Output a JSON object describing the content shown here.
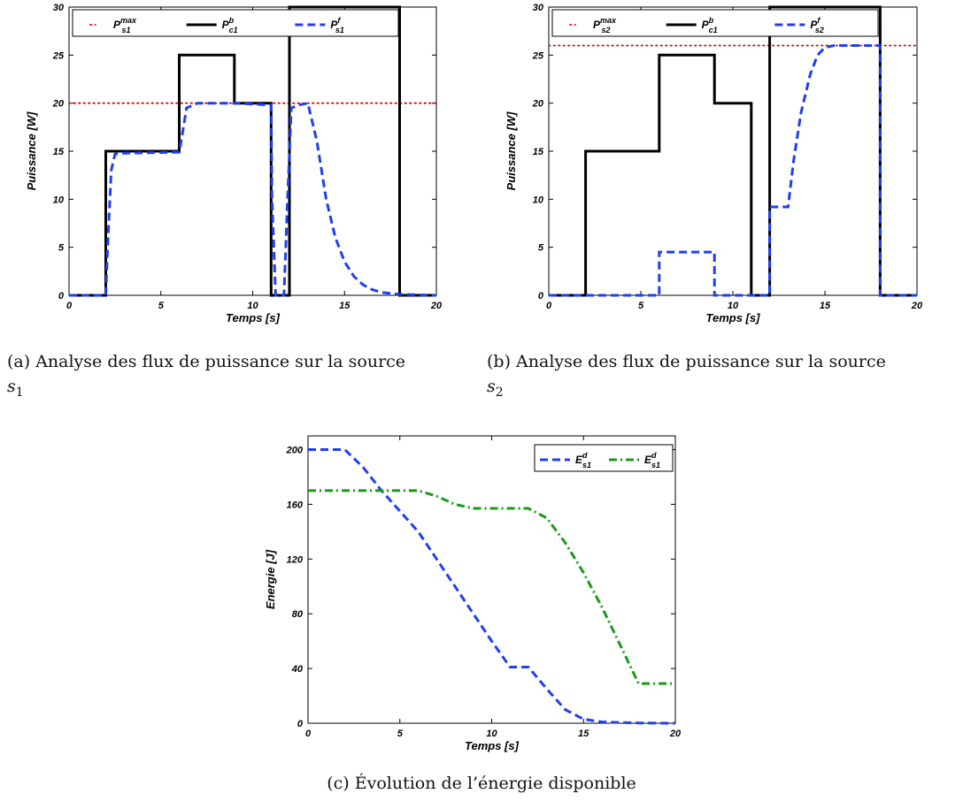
{
  "chart_data": [
    {
      "type": "line",
      "caption": "(a) Analyse des flux de puissance sur la source",
      "caption_symbol": "s",
      "caption_sub": "1",
      "xlabel": "Temps [s]",
      "ylabel": "Puissance [W]",
      "xlim": [
        0,
        20
      ],
      "ylim": [
        0,
        30
      ],
      "xticks": [
        0,
        5,
        10,
        15,
        20
      ],
      "yticks": [
        0,
        5,
        10,
        15,
        20,
        25,
        30
      ],
      "legend_position": "top-left",
      "series": [
        {
          "name": "P",
          "sup": "max",
          "sub": "s1",
          "style": "dotted",
          "color": "#e00000",
          "x": [
            0,
            20
          ],
          "y": [
            20,
            20
          ]
        },
        {
          "name": "P",
          "sup": "b",
          "sub": "c1",
          "style": "solid",
          "color": "#000000",
          "x": [
            0,
            2,
            2,
            6,
            6,
            9,
            9,
            11,
            11,
            12,
            12,
            18,
            18,
            20
          ],
          "y": [
            0,
            0,
            15,
            15,
            25,
            25,
            20,
            20,
            0,
            0,
            30,
            30,
            0,
            0
          ]
        },
        {
          "name": "P",
          "sup": "f",
          "sub": "s1",
          "style": "dashed",
          "color": "#1f3ff0",
          "x": [
            0,
            2,
            2.1,
            2.3,
            2.5,
            3,
            6,
            6.1,
            6.4,
            7,
            9,
            11,
            11.05,
            11.25,
            11.45,
            11.7,
            11.9,
            12.1,
            12.5,
            13,
            13.5,
            14,
            14.5,
            15,
            15.5,
            16,
            16.5,
            17,
            18,
            20
          ],
          "y": [
            0,
            0,
            5,
            13,
            14.7,
            14.8,
            14.9,
            16,
            19.5,
            20,
            20,
            19.8,
            10,
            0,
            0,
            0,
            10,
            19.5,
            19.8,
            20,
            16,
            10,
            6,
            3.5,
            2,
            1.1,
            0.6,
            0.3,
            0.1,
            0
          ]
        }
      ]
    },
    {
      "type": "line",
      "caption": "(b) Analyse des flux de puissance sur la source",
      "caption_symbol": "s",
      "caption_sub": "2",
      "xlabel": "Temps [s]",
      "ylabel": "Puissance [W]",
      "xlim": [
        0,
        20
      ],
      "ylim": [
        0,
        30
      ],
      "xticks": [
        0,
        5,
        10,
        15,
        20
      ],
      "yticks": [
        0,
        5,
        10,
        15,
        20,
        25,
        30
      ],
      "legend_position": "top-left",
      "series": [
        {
          "name": "P",
          "sup": "max",
          "sub": "s2",
          "style": "dotted",
          "color": "#e00000",
          "x": [
            0,
            20
          ],
          "y": [
            26,
            26
          ]
        },
        {
          "name": "P",
          "sup": "b",
          "sub": "c1",
          "style": "solid",
          "color": "#000000",
          "x": [
            0,
            2,
            2,
            6,
            6,
            9,
            9,
            11,
            11,
            12,
            12,
            18,
            18,
            20
          ],
          "y": [
            0,
            0,
            15,
            15,
            25,
            25,
            20,
            20,
            0,
            0,
            30,
            30,
            0,
            0
          ]
        },
        {
          "name": "P",
          "sup": "f",
          "sub": "s2",
          "style": "dashed",
          "color": "#1f3ff0",
          "x": [
            0,
            6,
            6,
            9,
            9,
            12,
            12,
            13,
            13.3,
            13.7,
            14.2,
            14.6,
            15,
            15.5,
            18,
            18,
            20
          ],
          "y": [
            0,
            0,
            4.5,
            4.5,
            0,
            0,
            9.2,
            9.2,
            14,
            19,
            23,
            25,
            25.8,
            26,
            26,
            0,
            0
          ]
        }
      ]
    },
    {
      "type": "line",
      "caption": "(c) Évolution de l’énergie disponible",
      "xlabel": "Temps [s]",
      "ylabel": "Energie [J]",
      "xlim": [
        0,
        20
      ],
      "ylim": [
        0,
        210
      ],
      "xticks": [
        0,
        5,
        10,
        15,
        20
      ],
      "yticks": [
        0,
        40,
        80,
        120,
        160,
        200
      ],
      "legend_position": "top-right",
      "series": [
        {
          "name": "E",
          "sup": "d",
          "sub": "s1",
          "style": "dashed",
          "color": "#1f3ff0",
          "x": [
            0,
            2,
            3,
            4,
            5,
            6,
            7,
            8,
            9,
            10,
            11,
            12,
            13,
            14,
            15,
            16,
            17,
            18,
            20
          ],
          "y": [
            200,
            200,
            187,
            170,
            155,
            140,
            120,
            100,
            80,
            60,
            41,
            41,
            25,
            10,
            3,
            1,
            0.5,
            0.2,
            0
          ]
        },
        {
          "name": "E",
          "sup": "d",
          "sub": "s1",
          "style": "dashdot",
          "color": "#1a9a1a",
          "x": [
            0,
            6,
            7,
            8,
            9,
            10,
            11,
            12,
            13,
            14,
            15,
            16,
            17,
            18,
            20
          ],
          "y": [
            170,
            170,
            166,
            160,
            157,
            157,
            157,
            157,
            150,
            132,
            110,
            85,
            57,
            29,
            29
          ]
        }
      ]
    }
  ]
}
